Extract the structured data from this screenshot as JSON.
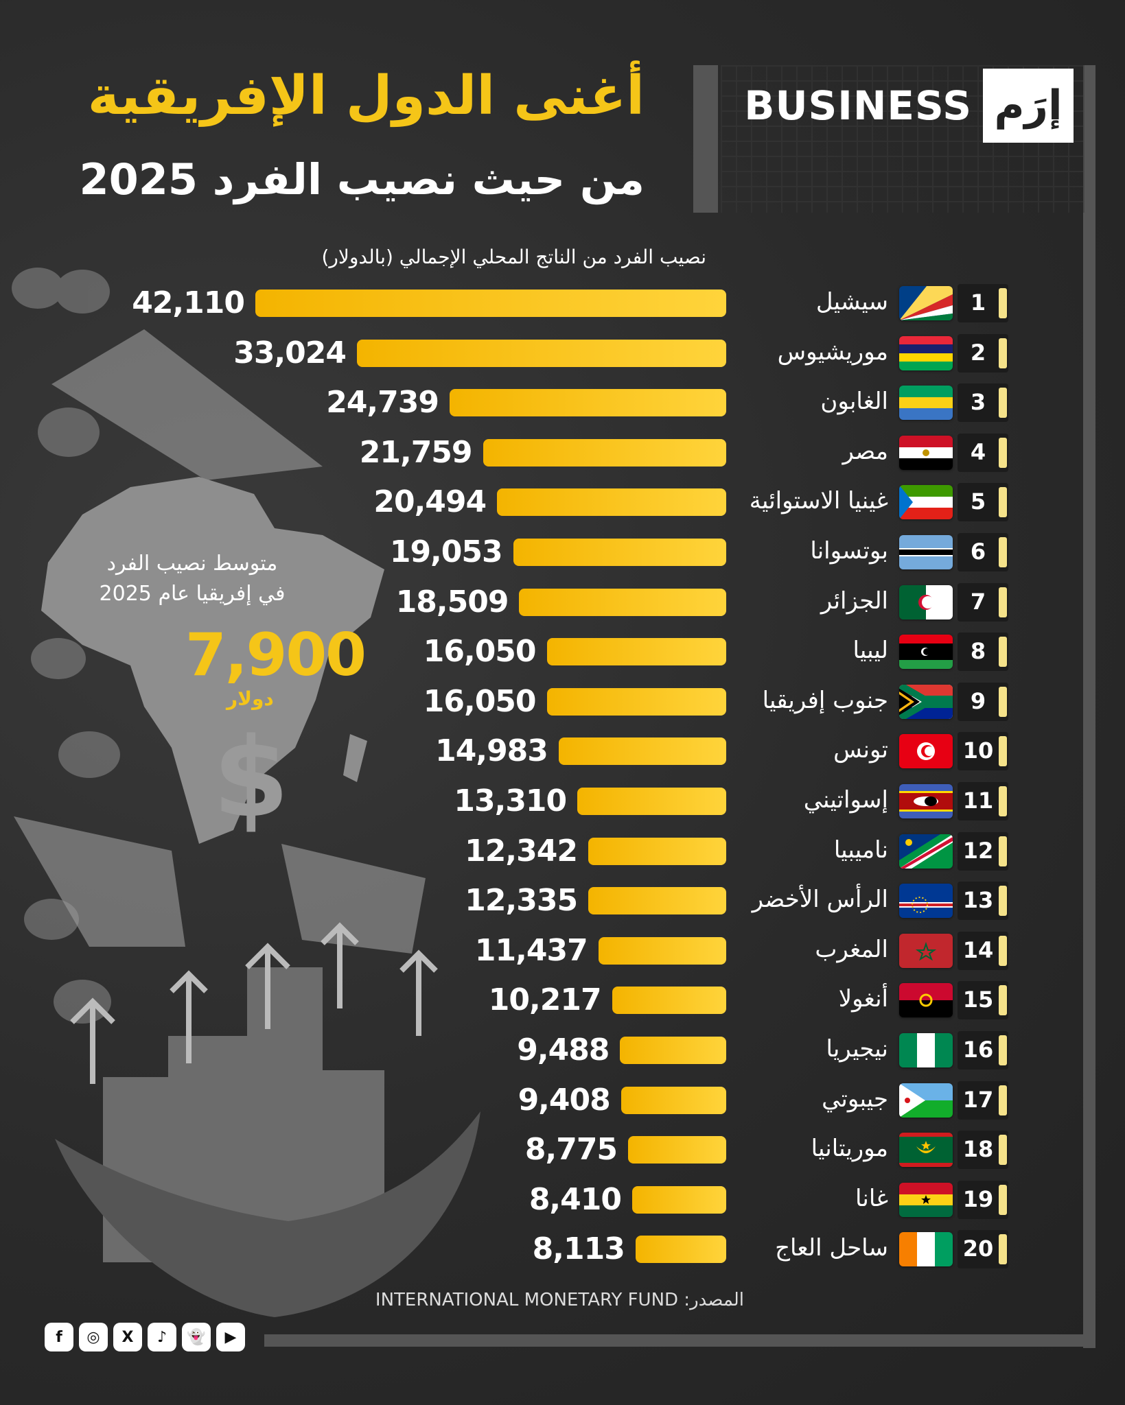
{
  "title_line1": "أغنى الدول الإفريقية",
  "title_line2": "من حيث نصيب الفرد 2025",
  "brand": {
    "text": "BUSINESS",
    "logo": "إرَم"
  },
  "subtitle": "نصيب الفرد من الناتج المحلي الإجمالي (بالدولار)",
  "average": {
    "label_line1": "متوسط نصيب الفرد",
    "label_line2": "في إفريقيا عام 2025",
    "value": "7,900",
    "unit": "دولار",
    "symbol": "$"
  },
  "source": "المصدر: INTERNATIONAL MONETARY FUND",
  "social": [
    "f",
    "◎",
    "X",
    "♪",
    "👻",
    "▶"
  ],
  "colors": {
    "bar": "#f5c518",
    "title": "#f5c518",
    "background": "#2b2b2b"
  },
  "chart_data": {
    "type": "bar",
    "orientation": "horizontal",
    "title": "أغنى الدول الإفريقية من حيث نصيب الفرد 2025",
    "xlabel": "نصيب الفرد من الناتج المحلي الإجمالي (بالدولار)",
    "categories": [
      "سيشيل",
      "موريشيوس",
      "الغابون",
      "مصر",
      "غينيا الاستوائية",
      "بوتسوانا",
      "الجزائر",
      "ليبيا",
      "جنوب إفريقيا",
      "تونس",
      "إسواتيني",
      "ناميبيا",
      "الرأس الأخضر",
      "المغرب",
      "أنغولا",
      "نيجيريا",
      "جيبوتي",
      "موريتانيا",
      "غانا",
      "ساحل العاج"
    ],
    "values": [
      42110,
      33024,
      24739,
      21759,
      20494,
      19053,
      18509,
      16050,
      16050,
      14983,
      13310,
      12342,
      12335,
      11437,
      10217,
      9488,
      9408,
      8775,
      8410,
      8113
    ],
    "labels": [
      "42,110",
      "33,024",
      "24,739",
      "21,759",
      "20,494",
      "19,053",
      "18,509",
      "16,050",
      "16,050",
      "14,983",
      "13,310",
      "12,342",
      "12,335",
      "11,437",
      "10,217",
      "9,488",
      "9,408",
      "8,775",
      "8,410",
      "8,113"
    ],
    "ranks": [
      "1",
      "2",
      "3",
      "4",
      "5",
      "6",
      "7",
      "8",
      "9",
      "10",
      "11",
      "12",
      "13",
      "14",
      "15",
      "16",
      "17",
      "18",
      "19",
      "20"
    ],
    "flags": [
      "seychelles",
      "mauritius",
      "gabon",
      "egypt",
      "equatorial-guinea",
      "botswana",
      "algeria",
      "libya",
      "south-africa",
      "tunisia",
      "eswatini",
      "namibia",
      "cape-verde",
      "morocco",
      "angola",
      "nigeria",
      "djibouti",
      "mauritania",
      "ghana",
      "ivory-coast"
    ]
  }
}
